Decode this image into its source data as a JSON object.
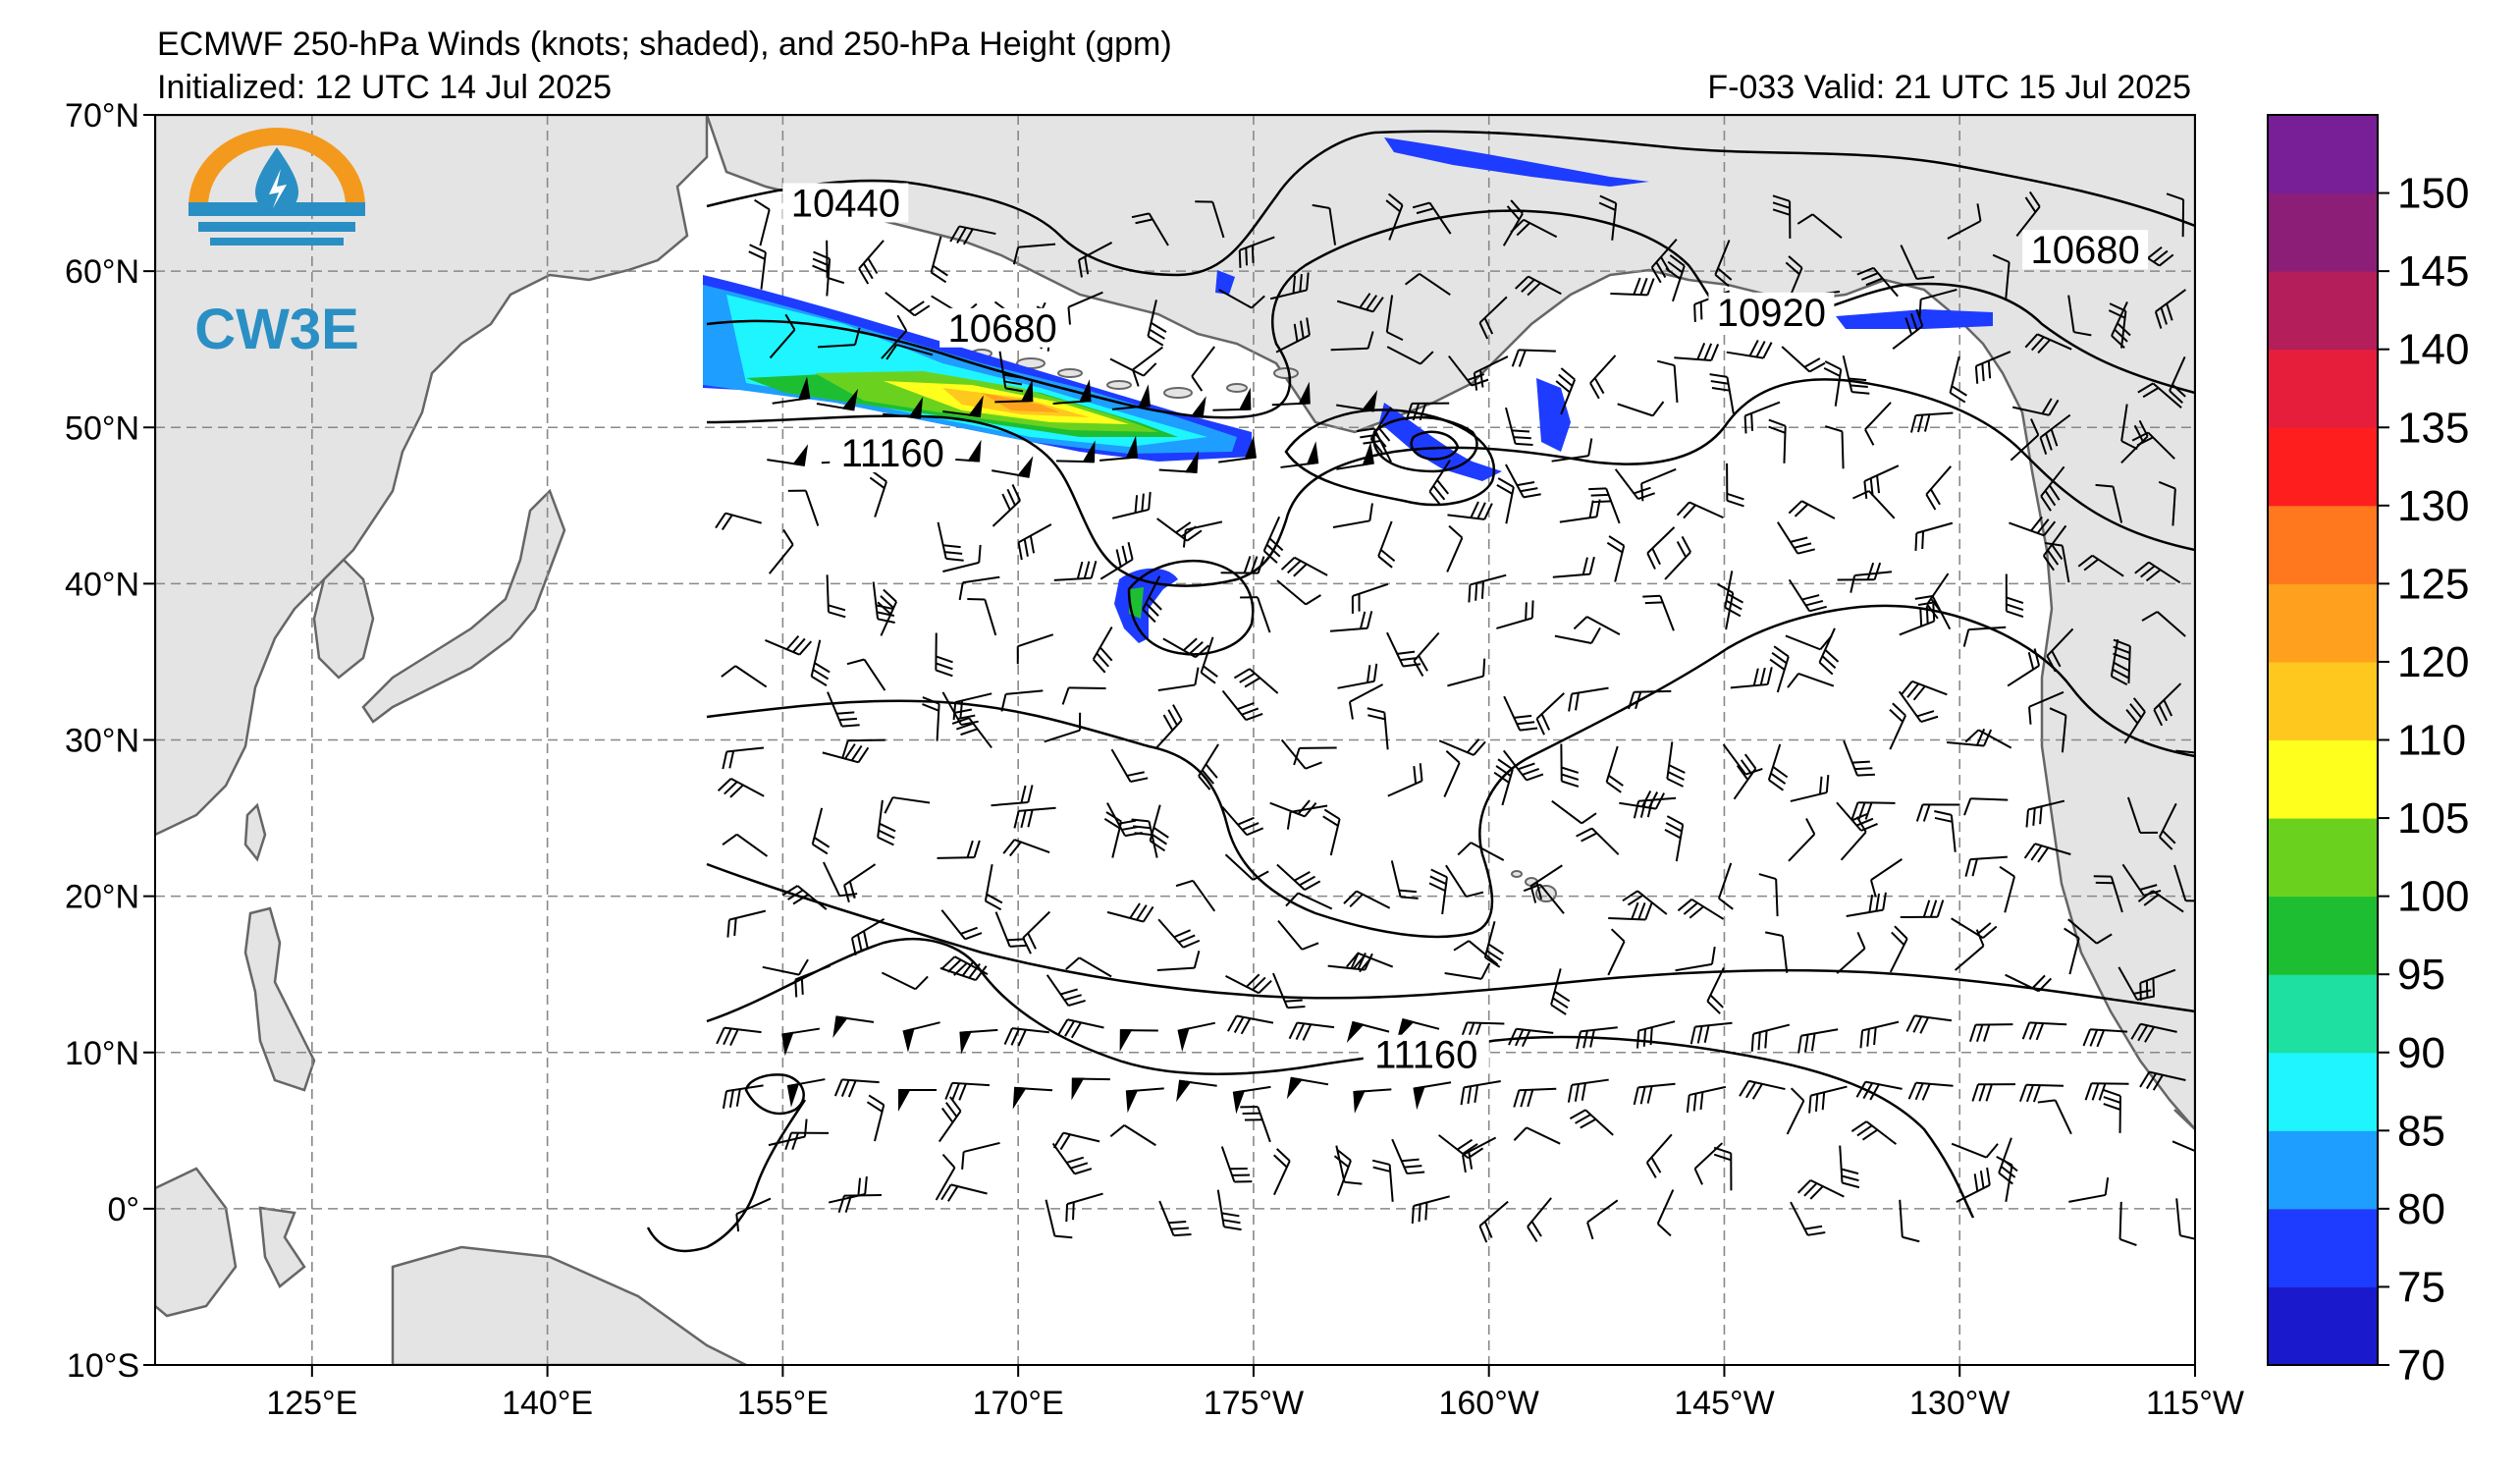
{
  "header": {
    "title": "ECMWF 250-hPa Winds (knots; shaded), and 250-hPa Height (gpm)",
    "initialized": "Initialized: 12 UTC 14 Jul 2025",
    "valid": "F-033  Valid: 21 UTC 15 Jul 2025"
  },
  "logo": {
    "text": "CW3E",
    "color": "#2a8fc4",
    "ring_color": "#f39a1e"
  },
  "map": {
    "projection": "PlateCarree",
    "lon_range": [
      115,
      245
    ],
    "lat_range": [
      -10,
      70
    ],
    "ocean_color": "#ffffff",
    "land_color": "#e4e4e4",
    "coast_color": "#666666",
    "grid": true,
    "lat_ticks": [
      {
        "value": 70,
        "label": "70°N"
      },
      {
        "value": 60,
        "label": "60°N"
      },
      {
        "value": 50,
        "label": "50°N"
      },
      {
        "value": 40,
        "label": "40°N"
      },
      {
        "value": 30,
        "label": "30°N"
      },
      {
        "value": 20,
        "label": "20°N"
      },
      {
        "value": 10,
        "label": "10°N"
      },
      {
        "value": 0,
        "label": "0°"
      },
      {
        "value": -10,
        "label": "10°S"
      }
    ],
    "lon_ticks": [
      {
        "value": 125,
        "label": "125°E"
      },
      {
        "value": 140,
        "label": "140°E"
      },
      {
        "value": 155,
        "label": "155°E"
      },
      {
        "value": 170,
        "label": "170°E"
      },
      {
        "value": 185,
        "label": "175°W"
      },
      {
        "value": 200,
        "label": "160°W"
      },
      {
        "value": 215,
        "label": "145°W"
      },
      {
        "value": 230,
        "label": "130°W"
      },
      {
        "value": 245,
        "label": "115°W"
      }
    ]
  },
  "contour_labels": [
    {
      "text": "10440",
      "lon": 159,
      "lat": 64
    },
    {
      "text": "10680",
      "lon": 169,
      "lat": 56
    },
    {
      "text": "11160",
      "lon": 162,
      "lat": 48
    },
    {
      "text": "10920",
      "lon": 218,
      "lat": 57
    },
    {
      "text": "10680",
      "lon": 238,
      "lat": 61
    },
    {
      "text": "11160",
      "lon": 196,
      "lat": 9.5
    }
  ],
  "colorbar": {
    "colors": [
      "#1a1acc",
      "#1e3cff",
      "#1e9eff",
      "#1ef5ff",
      "#1ee0a0",
      "#1ebe32",
      "#6ad21e",
      "#ffff1e",
      "#ffc81e",
      "#ffa01e",
      "#ff781e",
      "#ff1e1e",
      "#e61e3c",
      "#b41e5a",
      "#8c1e78",
      "#781e96"
    ],
    "labels": [
      "70",
      "75",
      "80",
      "85",
      "90",
      "95",
      "100",
      "105",
      "110",
      "120",
      "125",
      "130",
      "135",
      "140",
      "145",
      "150"
    ]
  }
}
